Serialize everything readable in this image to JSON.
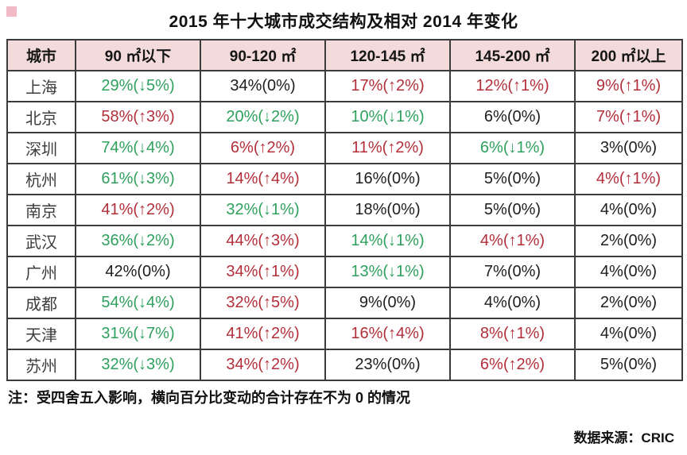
{
  "title": "2015 年十大城市成交结构及相对 2014 年变化",
  "note": "注：受四舍五入影响，横向百分比变动的合计存在不为 0 的情况",
  "source": "数据来源：CRIC",
  "colors": {
    "increase_text": "#b22f3a",
    "decrease_text": "#2fa05e",
    "nochange_text": "#1e1e1e",
    "header_bg": "#f2dbda",
    "border": "#3c3c3c",
    "corner_mark": "#f2bac4"
  },
  "chart_data": {
    "type": "table",
    "title": "2015 年十大城市成交结构及相对 2014 年变化",
    "columns": [
      "城市",
      "90 ㎡以下",
      "90-120 ㎡",
      "120-145 ㎡",
      "145-200 ㎡",
      "200 ㎡以上"
    ],
    "rows": [
      {
        "city": "上海",
        "cells": [
          {
            "text": "29%(↓5%)",
            "share_pct": 29,
            "change_pct": -5
          },
          {
            "text": "34%(0%)",
            "share_pct": 34,
            "change_pct": 0
          },
          {
            "text": "17%(↑2%)",
            "share_pct": 17,
            "change_pct": 2
          },
          {
            "text": "12%(↑1%)",
            "share_pct": 12,
            "change_pct": 1
          },
          {
            "text": "9%(↑1%)",
            "share_pct": 9,
            "change_pct": 1
          }
        ]
      },
      {
        "city": "北京",
        "cells": [
          {
            "text": "58%(↑3%)",
            "share_pct": 58,
            "change_pct": 3
          },
          {
            "text": "20%(↓2%)",
            "share_pct": 20,
            "change_pct": -2
          },
          {
            "text": "10%(↓1%)",
            "share_pct": 10,
            "change_pct": -1
          },
          {
            "text": "6%(0%)",
            "share_pct": 6,
            "change_pct": 0
          },
          {
            "text": "7%(↑1%)",
            "share_pct": 7,
            "change_pct": 1
          }
        ]
      },
      {
        "city": "深圳",
        "cells": [
          {
            "text": "74%(↓4%)",
            "share_pct": 74,
            "change_pct": -4
          },
          {
            "text": "6%(↑2%)",
            "share_pct": 6,
            "change_pct": 2
          },
          {
            "text": "11%(↑2%)",
            "share_pct": 11,
            "change_pct": 2
          },
          {
            "text": "6%(↓1%)",
            "share_pct": 6,
            "change_pct": -1
          },
          {
            "text": "3%(0%)",
            "share_pct": 3,
            "change_pct": 0
          }
        ]
      },
      {
        "city": "杭州",
        "cells": [
          {
            "text": "61%(↓3%)",
            "share_pct": 61,
            "change_pct": -3
          },
          {
            "text": "14%(↑4%)",
            "share_pct": 14,
            "change_pct": 4
          },
          {
            "text": "16%(0%)",
            "share_pct": 16,
            "change_pct": 0
          },
          {
            "text": "5%(0%)",
            "share_pct": 5,
            "change_pct": 0
          },
          {
            "text": "4%(↑1%)",
            "share_pct": 4,
            "change_pct": 1
          }
        ]
      },
      {
        "city": "南京",
        "cells": [
          {
            "text": "41%(↑2%)",
            "share_pct": 41,
            "change_pct": 2
          },
          {
            "text": "32%(↓1%)",
            "share_pct": 32,
            "change_pct": -1
          },
          {
            "text": "18%(0%)",
            "share_pct": 18,
            "change_pct": 0
          },
          {
            "text": "5%(0%)",
            "share_pct": 5,
            "change_pct": 0
          },
          {
            "text": "4%(0%)",
            "share_pct": 4,
            "change_pct": 0
          }
        ]
      },
      {
        "city": "武汉",
        "cells": [
          {
            "text": "36%(↓2%)",
            "share_pct": 36,
            "change_pct": -2
          },
          {
            "text": "44%(↑3%)",
            "share_pct": 44,
            "change_pct": 3
          },
          {
            "text": "14%(↓1%)",
            "share_pct": 14,
            "change_pct": -1
          },
          {
            "text": "4%(↑1%)",
            "share_pct": 4,
            "change_pct": 1
          },
          {
            "text": "2%(0%)",
            "share_pct": 2,
            "change_pct": 0
          }
        ]
      },
      {
        "city": "广州",
        "cells": [
          {
            "text": "42%(0%)",
            "share_pct": 42,
            "change_pct": 0
          },
          {
            "text": "34%(↑1%)",
            "share_pct": 34,
            "change_pct": 1
          },
          {
            "text": "13%(↓1%)",
            "share_pct": 13,
            "change_pct": -1
          },
          {
            "text": "7%(0%)",
            "share_pct": 7,
            "change_pct": 0
          },
          {
            "text": "4%(0%)",
            "share_pct": 4,
            "change_pct": 0
          }
        ]
      },
      {
        "city": "成都",
        "cells": [
          {
            "text": "54%(↓4%)",
            "share_pct": 54,
            "change_pct": -4
          },
          {
            "text": "32%(↑5%)",
            "share_pct": 32,
            "change_pct": 5
          },
          {
            "text": "9%(0%)",
            "share_pct": 9,
            "change_pct": 0
          },
          {
            "text": "4%(0%)",
            "share_pct": 4,
            "change_pct": 0
          },
          {
            "text": "2%(0%)",
            "share_pct": 2,
            "change_pct": 0
          }
        ]
      },
      {
        "city": "天津",
        "cells": [
          {
            "text": "31%(↓7%)",
            "share_pct": 31,
            "change_pct": -7
          },
          {
            "text": "41%(↑2%)",
            "share_pct": 41,
            "change_pct": 2
          },
          {
            "text": "16%(↑4%)",
            "share_pct": 16,
            "change_pct": 4
          },
          {
            "text": "8%(↑1%)",
            "share_pct": 8,
            "change_pct": 1
          },
          {
            "text": "4%(0%)",
            "share_pct": 4,
            "change_pct": 0
          }
        ]
      },
      {
        "city": "苏州",
        "cells": [
          {
            "text": "32%(↓3%)",
            "share_pct": 32,
            "change_pct": -3
          },
          {
            "text": "34%(↑2%)",
            "share_pct": 34,
            "change_pct": 2
          },
          {
            "text": "23%(0%)",
            "share_pct": 23,
            "change_pct": 0
          },
          {
            "text": "6%(↑2%)",
            "share_pct": 6,
            "change_pct": 2
          },
          {
            "text": "5%(0%)",
            "share_pct": 5,
            "change_pct": 0
          }
        ]
      }
    ]
  }
}
